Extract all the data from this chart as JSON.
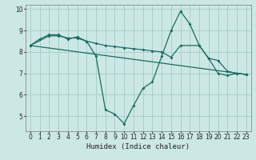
{
  "xlabel": "Humidex (Indice chaleur)",
  "bg_color": "#cce8e4",
  "grid_color": "#aacfcb",
  "line_color": "#1a6b60",
  "xlim": [
    -0.5,
    23.5
  ],
  "ylim": [
    4.3,
    10.2
  ],
  "xticks": [
    0,
    1,
    2,
    3,
    4,
    5,
    6,
    7,
    8,
    9,
    10,
    11,
    12,
    13,
    14,
    15,
    16,
    17,
    18,
    19,
    20,
    21,
    22,
    23
  ],
  "yticks": [
    5,
    6,
    7,
    8,
    9,
    10
  ],
  "line1_x": [
    0,
    1,
    2,
    3,
    4,
    5,
    6,
    7,
    8,
    9,
    10,
    11,
    12,
    13,
    14,
    15,
    16,
    17,
    18,
    19,
    20,
    21,
    22,
    23
  ],
  "line1_y": [
    8.3,
    8.6,
    8.8,
    8.8,
    8.6,
    8.7,
    8.5,
    7.8,
    5.3,
    5.1,
    4.65,
    5.5,
    6.3,
    6.6,
    7.8,
    9.0,
    9.9,
    9.3,
    8.3,
    7.7,
    7.0,
    6.9,
    7.0,
    6.95
  ],
  "line2_x": [
    0,
    2,
    3,
    4,
    5,
    6,
    7,
    8,
    9,
    10,
    11,
    12,
    13,
    14,
    15,
    16,
    18,
    19,
    20,
    21,
    22,
    23
  ],
  "line2_y": [
    8.3,
    8.75,
    8.75,
    8.65,
    8.65,
    8.5,
    8.4,
    8.3,
    8.25,
    8.2,
    8.15,
    8.1,
    8.05,
    8.0,
    7.75,
    8.3,
    8.3,
    7.7,
    7.6,
    7.1,
    7.0,
    6.95
  ],
  "line3_x": [
    0,
    23
  ],
  "line3_y": [
    8.3,
    6.95
  ]
}
